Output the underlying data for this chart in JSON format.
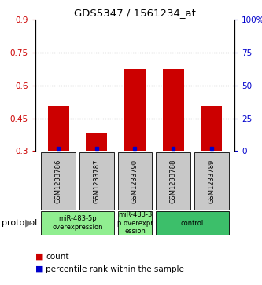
{
  "title": "GDS5347 / 1561234_at",
  "samples": [
    "GSM1233786",
    "GSM1233787",
    "GSM1233790",
    "GSM1233788",
    "GSM1233789"
  ],
  "bar_values": [
    0.505,
    0.385,
    0.675,
    0.675,
    0.505
  ],
  "percentile_values": [
    2,
    2,
    2,
    2,
    2
  ],
  "ylim_left": [
    0.3,
    0.9
  ],
  "ylim_right": [
    0,
    100
  ],
  "yticks_left": [
    0.3,
    0.45,
    0.6,
    0.75,
    0.9
  ],
  "yticks_right": [
    0,
    25,
    50,
    75,
    100
  ],
  "ytick_labels_left": [
    "0.3",
    "0.45",
    "0.6",
    "0.75",
    "0.9"
  ],
  "ytick_labels_right": [
    "0",
    "25",
    "50",
    "75",
    "100%"
  ],
  "bar_color": "#cc0000",
  "percentile_color": "#0000cc",
  "bar_width": 0.55,
  "sample_box_color": "#c8c8c8",
  "proto_group_xranges": [
    [
      -0.45,
      1.45
    ],
    [
      1.55,
      2.45
    ],
    [
      2.55,
      4.45
    ]
  ],
  "proto_group_labels": [
    "miR-483-5p\noverexpression",
    "miR-483-3\np overexpr\nession",
    "control"
  ],
  "proto_group_colors": [
    "#90EE90",
    "#90EE90",
    "#3CBF6A"
  ],
  "protocol_label": "protocol",
  "legend_count_label": "count",
  "legend_percentile_label": "percentile rank within the sample",
  "grid_yticks": [
    0.45,
    0.6,
    0.75
  ]
}
